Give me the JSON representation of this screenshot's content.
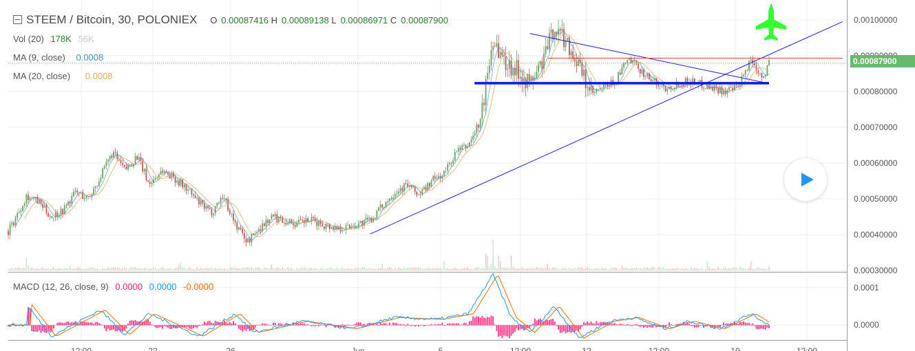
{
  "header": {
    "symbol": "STEEM / Bitcoin, 30, POLONIEX",
    "o_label": "O",
    "o": "0.00087416",
    "h_label": "H",
    "h": "0.00089138",
    "l_label": "L",
    "l": "0.00086971",
    "c_label": "C",
    "c": "0.00087900"
  },
  "indicators": {
    "vol_label": "Vol (20)",
    "vol_value": "178K",
    "vol_ma": "56K",
    "ma9_label": "MA (9, close)",
    "ma9_value": "0.0008",
    "ma20_label": "MA (20, close)",
    "ma20_value": "0.0008",
    "macd_label": "MACD (12, 26, close, 9)",
    "macd_hist": "0.0000",
    "macd_line": "0.0000",
    "macd_signal": "-0.0000"
  },
  "last_price_tag": "0.00087900",
  "icons": {
    "jet": "fighter-jet-icon",
    "play": "play-icon",
    "collapse": "collapse-icon"
  },
  "colors": {
    "up": "#6aa06a",
    "down": "#b85a5a",
    "ma9": "#4a8fbf",
    "ma20": "#e8a860",
    "trend": "#1a1aff",
    "resistance": "#e53935",
    "macd": "#2196f3",
    "signal": "#ff6d00",
    "hist": "#ff1f7a",
    "jet": "#33ff33",
    "price_tag": "#66bb6a"
  },
  "chart_data": {
    "type": "candlestick",
    "symbol": "STEEM / Bitcoin",
    "interval": "30",
    "exchange": "POLONIEX",
    "price_axis": {
      "ticks": [
        "0.00100000",
        "0.00090000",
        "0.00080000",
        "0.00070000",
        "0.00060000",
        "0.00050000",
        "0.00040000",
        "0.00030000"
      ],
      "range": [
        0.0003,
        0.00104
      ]
    },
    "time_axis": {
      "ticks": [
        "12:00",
        "22",
        "26",
        "Jun",
        "5",
        "12:00",
        "12",
        "12:00",
        "19",
        "12:00"
      ]
    },
    "price_path": [
      [
        0,
        0.00041
      ],
      [
        1,
        0.00044
      ],
      [
        3,
        0.00051
      ],
      [
        5,
        0.00049
      ],
      [
        7,
        0.00045
      ],
      [
        9,
        0.00047
      ],
      [
        11,
        0.00052
      ],
      [
        13,
        0.0005
      ],
      [
        15,
        0.00056
      ],
      [
        17,
        0.00063
      ],
      [
        19,
        0.00058
      ],
      [
        21,
        0.00062
      ],
      [
        23,
        0.00054
      ],
      [
        25,
        0.00058
      ],
      [
        27,
        0.00056
      ],
      [
        29,
        0.00053
      ],
      [
        31,
        0.00049
      ],
      [
        33,
        0.00046
      ],
      [
        35,
        0.00051
      ],
      [
        37,
        0.00043
      ],
      [
        39,
        0.00038
      ],
      [
        41,
        0.00042
      ],
      [
        43,
        0.00045
      ],
      [
        45,
        0.00044
      ],
      [
        47,
        0.00043
      ],
      [
        49,
        0.00044
      ],
      [
        51,
        0.00043
      ],
      [
        53,
        0.00042
      ],
      [
        55,
        0.00042
      ],
      [
        57,
        0.00043
      ],
      [
        59,
        0.00044
      ],
      [
        61,
        0.00048
      ],
      [
        63,
        0.00052
      ],
      [
        65,
        0.00054
      ],
      [
        67,
        0.00051
      ],
      [
        69,
        0.00055
      ],
      [
        71,
        0.00057
      ],
      [
        73,
        0.00063
      ],
      [
        75,
        0.00065
      ],
      [
        77,
        0.00072
      ],
      [
        79,
        0.00095
      ],
      [
        81,
        0.00088
      ],
      [
        83,
        0.00086
      ],
      [
        85,
        0.00082
      ],
      [
        87,
        0.00088
      ],
      [
        89,
        0.00098
      ],
      [
        91,
        0.00094
      ],
      [
        93,
        0.00087
      ],
      [
        95,
        0.00079
      ],
      [
        97,
        0.00081
      ],
      [
        99,
        0.00083
      ],
      [
        101,
        0.00089
      ],
      [
        103,
        0.00086
      ],
      [
        105,
        0.00083
      ],
      [
        107,
        0.00081
      ],
      [
        109,
        0.00082
      ],
      [
        111,
        0.00083
      ],
      [
        113,
        0.00082
      ],
      [
        115,
        0.00081
      ],
      [
        117,
        0.0008
      ],
      [
        119,
        0.00081
      ],
      [
        121,
        0.00089
      ],
      [
        123,
        0.00084
      ],
      [
        124,
        0.00088
      ]
    ],
    "x_range": [
      0,
      124
    ],
    "volume": {
      "range": [
        0,
        178000
      ],
      "spikes": [
        [
          3,
          82000
        ],
        [
          10,
          30000
        ],
        [
          20,
          25000
        ],
        [
          28,
          48000
        ],
        [
          33,
          20000
        ],
        [
          43,
          35000
        ],
        [
          61,
          30000
        ],
        [
          71,
          35000
        ],
        [
          78,
          120000
        ],
        [
          79,
          178000
        ],
        [
          80,
          95000
        ],
        [
          82,
          60000
        ],
        [
          88,
          40000
        ],
        [
          100,
          30000
        ],
        [
          105,
          28000
        ],
        [
          114,
          45000
        ],
        [
          121,
          55000
        ],
        [
          124,
          22000
        ]
      ]
    },
    "macd": {
      "range": [
        -4e-05,
        0.00014
      ],
      "ticks": [
        "0.0001",
        "0.0000"
      ],
      "peaks": [
        [
          3,
          5.5e-05
        ],
        [
          7,
          -3e-05
        ],
        [
          15,
          4e-05
        ],
        [
          19,
          -2.5e-05
        ],
        [
          23,
          3e-05
        ],
        [
          31,
          -3e-05
        ],
        [
          37,
          3e-05
        ],
        [
          40,
          -2e-05
        ],
        [
          48,
          1e-05
        ],
        [
          56,
          -1e-05
        ],
        [
          63,
          2e-05
        ],
        [
          70,
          1.5e-05
        ],
        [
          75,
          3e-05
        ],
        [
          79,
          0.000135
        ],
        [
          82,
          2e-05
        ],
        [
          85,
          -2e-05
        ],
        [
          89,
          5e-05
        ],
        [
          93,
          -3.5e-05
        ],
        [
          98,
          1e-05
        ],
        [
          102,
          2e-05
        ],
        [
          107,
          -1e-05
        ],
        [
          111,
          1e-05
        ],
        [
          116,
          -1e-05
        ],
        [
          121,
          3e-05
        ],
        [
          124,
          0.0
        ]
      ]
    },
    "drawings": {
      "support_line": {
        "from": [
          59,
          0.000402
        ],
        "to": [
          136,
          0.000995
        ]
      },
      "falling_trendline": {
        "from": [
          85,
          0.000962
        ],
        "to": [
          124,
          0.000822
        ]
      },
      "horizontal_level": {
        "from": [
          76,
          0.000823
        ],
        "to": [
          124,
          0.000823
        ]
      },
      "resistance_line": {
        "from": [
          88,
          0.000893
        ],
        "to": [
          136,
          0.000893
        ]
      },
      "last_price": 0.000879
    }
  }
}
